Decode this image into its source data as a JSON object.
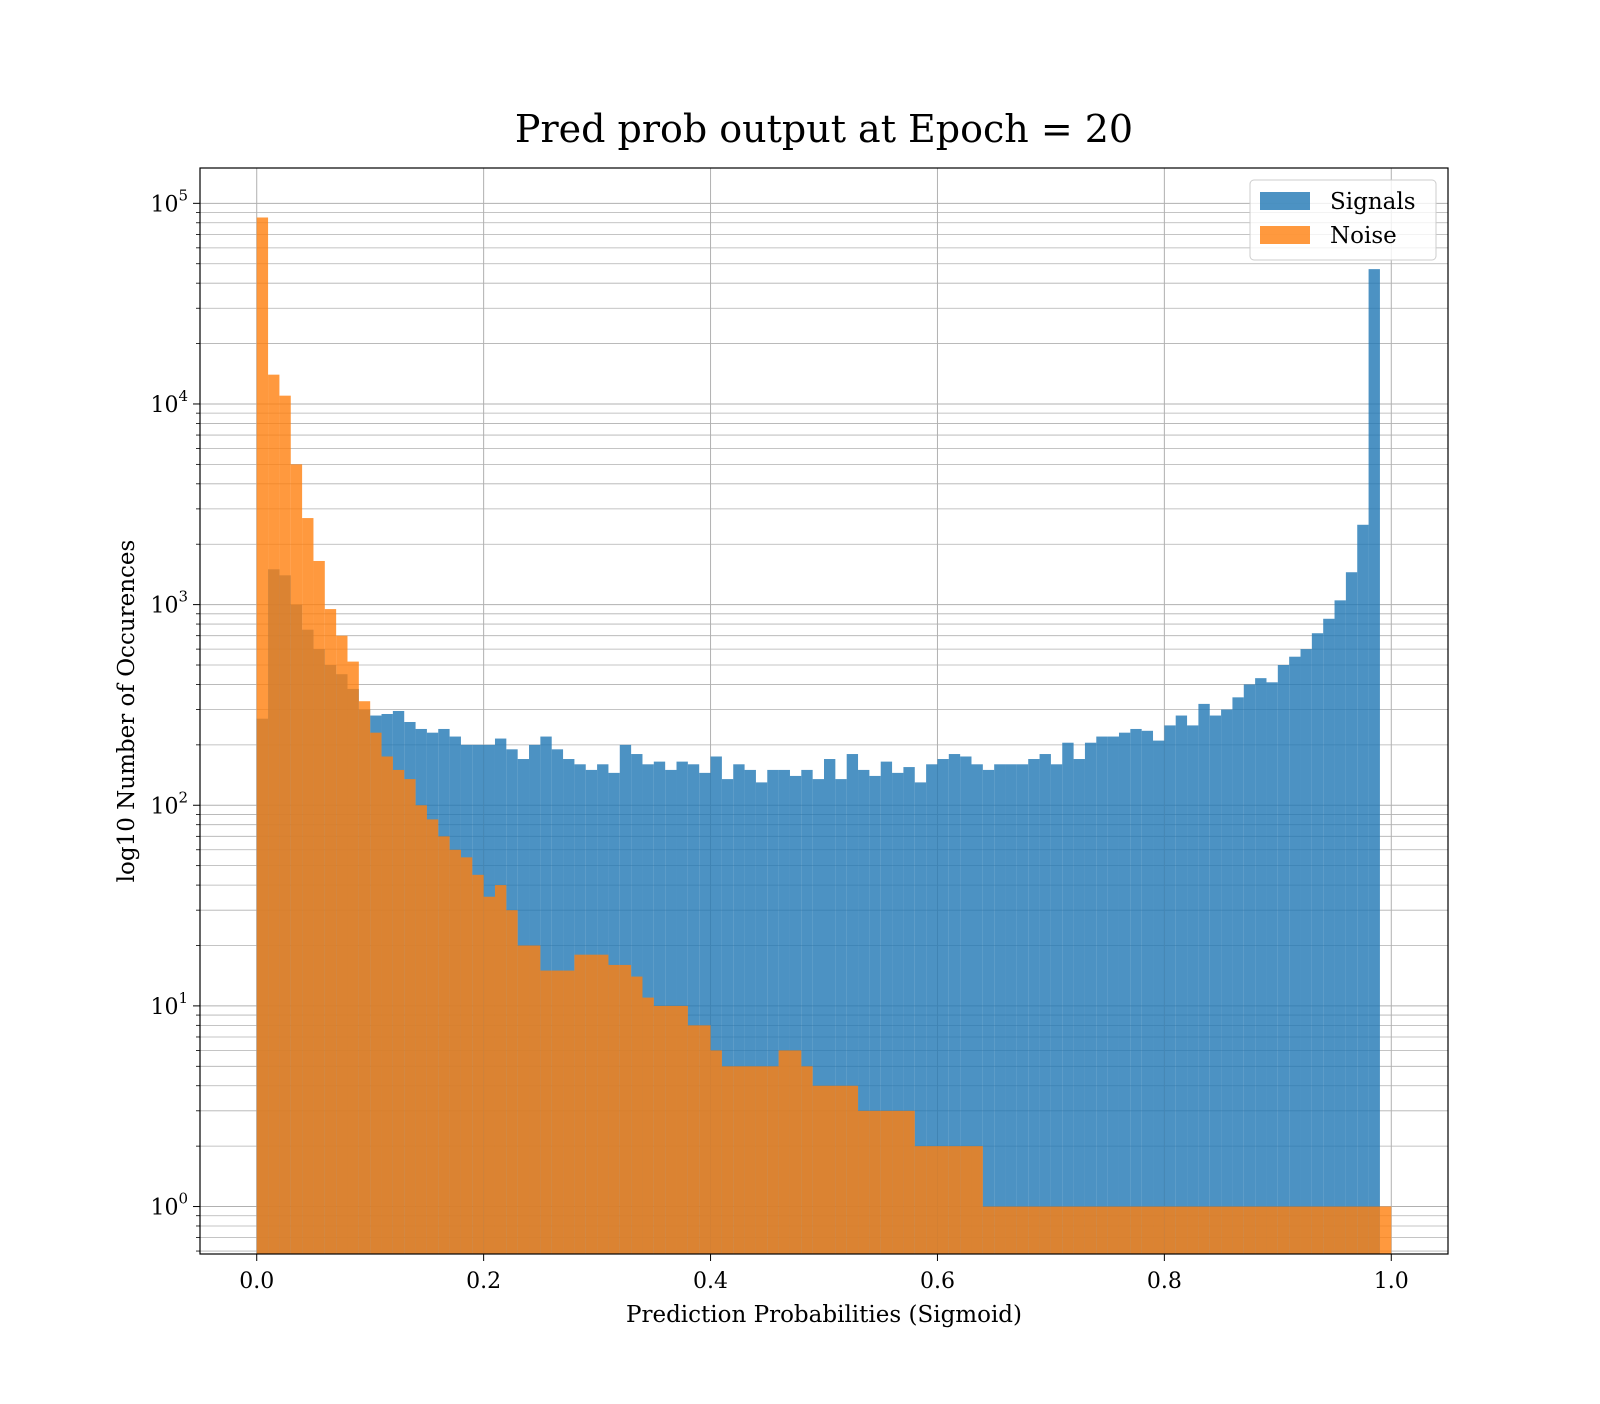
{
  "chart_data": {
    "type": "bar",
    "title": "Pred prob output at Epoch = 20",
    "xlabel": "Prediction Probabilities (Sigmoid)",
    "ylabel": "log10 Number of Occurences",
    "x_scale": "linear",
    "y_scale": "log",
    "xlim": [
      -0.05,
      1.05
    ],
    "ylim": [
      0.58,
      150000
    ],
    "x_ticks": [
      0.0,
      0.2,
      0.4,
      0.6,
      0.8,
      1.0
    ],
    "x_tick_labels": [
      "0.0",
      "0.2",
      "0.4",
      "0.6",
      "0.8",
      "1.0"
    ],
    "y_ticks": [
      1,
      10,
      100,
      1000,
      10000,
      100000
    ],
    "y_tick_labels": [
      {
        "base": "10",
        "exp": "0"
      },
      {
        "base": "10",
        "exp": "1"
      },
      {
        "base": "10",
        "exp": "2"
      },
      {
        "base": "10",
        "exp": "3"
      },
      {
        "base": "10",
        "exp": "4"
      },
      {
        "base": "10",
        "exp": "5"
      }
    ],
    "grid": true,
    "legend_position": "top-right",
    "bins": {
      "start": 0.0,
      "width": 0.01,
      "count": 100
    },
    "series": [
      {
        "name": "Signals",
        "color": "#1f77b4",
        "values": [
          270,
          1500,
          1400,
          1000,
          750,
          600,
          500,
          450,
          380,
          300,
          280,
          285,
          295,
          260,
          240,
          230,
          240,
          220,
          200,
          200,
          200,
          215,
          190,
          170,
          200,
          220,
          190,
          170,
          160,
          150,
          160,
          145,
          200,
          180,
          160,
          165,
          150,
          165,
          160,
          145,
          175,
          135,
          160,
          150,
          130,
          150,
          150,
          140,
          150,
          135,
          170,
          135,
          180,
          150,
          140,
          165,
          145,
          155,
          130,
          160,
          170,
          180,
          175,
          160,
          150,
          160,
          160,
          160,
          170,
          180,
          160,
          205,
          170,
          205,
          220,
          220,
          230,
          240,
          235,
          210,
          250,
          280,
          250,
          320,
          280,
          300,
          345,
          400,
          430,
          410,
          500,
          550,
          600,
          720,
          850,
          1050,
          1450,
          2500,
          47000,
          0
        ]
      },
      {
        "name": "Noise",
        "color": "#ff7f0e",
        "values": [
          85000,
          14000,
          11000,
          5000,
          2700,
          1650,
          950,
          700,
          520,
          330,
          230,
          175,
          150,
          135,
          100,
          85,
          70,
          60,
          55,
          45,
          35,
          40,
          30,
          20,
          20,
          15,
          15,
          15,
          18,
          18,
          18,
          16,
          16,
          14,
          11,
          10,
          10,
          10,
          8,
          8,
          6,
          5,
          5,
          5,
          5,
          5,
          6,
          6,
          5,
          4,
          4,
          4,
          4,
          3,
          3,
          3,
          3,
          3,
          2,
          2,
          2,
          2,
          2,
          2,
          1,
          1,
          1,
          1,
          1,
          1,
          1,
          1,
          1,
          1,
          1,
          1,
          1,
          1,
          1,
          1,
          1,
          1,
          1,
          1,
          1,
          1,
          1,
          1,
          1,
          1,
          1,
          1,
          1,
          1,
          1,
          1,
          1,
          1,
          1,
          1
        ]
      }
    ]
  }
}
